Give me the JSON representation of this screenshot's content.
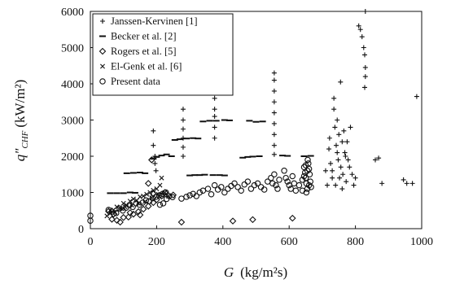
{
  "chart_data": {
    "type": "scatter",
    "title": "",
    "xlabel": {
      "symbol": "G",
      "unit": "(kg/m²s)"
    },
    "ylabel": {
      "symbol": "q\"",
      "subscript": "CHF",
      "unit": "(kW/m²)"
    },
    "xlim": [
      0,
      1000
    ],
    "ylim": [
      0,
      6000
    ],
    "xticks": [
      "0",
      "200",
      "400",
      "600",
      "800",
      "1000"
    ],
    "yticks": [
      "0",
      "1000",
      "2000",
      "3000",
      "4000",
      "5000",
      "6000"
    ],
    "grid": false,
    "legend_position": "top-left",
    "series": [
      {
        "name": "Janssen-Kervinen [1]",
        "marker": "plus",
        "points": [
          [
            190,
            2700
          ],
          [
            190,
            2300
          ],
          [
            195,
            2000
          ],
          [
            195,
            1800
          ],
          [
            198,
            1600
          ],
          [
            280,
            3300
          ],
          [
            280,
            3000
          ],
          [
            280,
            2750
          ],
          [
            280,
            2500
          ],
          [
            280,
            2250
          ],
          [
            280,
            2000
          ],
          [
            375,
            3600
          ],
          [
            375,
            3300
          ],
          [
            375,
            3100
          ],
          [
            375,
            2800
          ],
          [
            375,
            2500
          ],
          [
            555,
            4300
          ],
          [
            555,
            4100
          ],
          [
            555,
            3800
          ],
          [
            555,
            3500
          ],
          [
            555,
            3200
          ],
          [
            555,
            2900
          ],
          [
            555,
            2600
          ],
          [
            555,
            2300
          ],
          [
            555,
            2050
          ],
          [
            735,
            3600
          ],
          [
            735,
            3300
          ],
          [
            745,
            3000
          ],
          [
            750,
            2600
          ],
          [
            755,
            4050
          ],
          [
            760,
            2400
          ],
          [
            770,
            2000
          ],
          [
            720,
            2200
          ],
          [
            725,
            1800
          ],
          [
            730,
            1600
          ],
          [
            738,
            2800
          ],
          [
            742,
            2300
          ],
          [
            748,
            1900
          ],
          [
            752,
            1400
          ],
          [
            756,
            1700
          ],
          [
            762,
            1500
          ],
          [
            768,
            2100
          ],
          [
            772,
            1300
          ],
          [
            778,
            1900
          ],
          [
            782,
            1700
          ],
          [
            790,
            1500
          ],
          [
            795,
            1200
          ],
          [
            800,
            1400
          ],
          [
            760,
            1100
          ],
          [
            740,
            1200
          ],
          [
            730,
            1400
          ],
          [
            715,
            1200
          ],
          [
            710,
            1600
          ],
          [
            722,
            2500
          ],
          [
            745,
            2100
          ],
          [
            775,
            2400
          ],
          [
            785,
            2800
          ],
          [
            765,
            2700
          ],
          [
            810,
            5600
          ],
          [
            815,
            5500
          ],
          [
            820,
            5300
          ],
          [
            825,
            5000
          ],
          [
            828,
            4800
          ],
          [
            830,
            6000
          ],
          [
            830,
            4450
          ],
          [
            830,
            4200
          ],
          [
            828,
            3900
          ],
          [
            870,
            1950
          ],
          [
            860,
            1900
          ],
          [
            880,
            1250
          ],
          [
            945,
            1350
          ],
          [
            955,
            1250
          ],
          [
            972,
            1250
          ],
          [
            985,
            3650
          ]
        ]
      },
      {
        "name": "Becker et al. [2]",
        "marker": "dash",
        "points": [
          [
            60,
            980
          ],
          [
            80,
            980
          ],
          [
            100,
            980
          ],
          [
            120,
            1000
          ],
          [
            135,
            990
          ],
          [
            110,
            1530
          ],
          [
            130,
            1540
          ],
          [
            150,
            1550
          ],
          [
            165,
            1530
          ],
          [
            190,
            1930
          ],
          [
            200,
            1980
          ],
          [
            215,
            2020
          ],
          [
            230,
            2050
          ],
          [
            245,
            2000
          ],
          [
            255,
            2450
          ],
          [
            270,
            2470
          ],
          [
            290,
            2490
          ],
          [
            310,
            2500
          ],
          [
            325,
            2490
          ],
          [
            340,
            2960
          ],
          [
            360,
            2980
          ],
          [
            380,
            2980
          ],
          [
            405,
            3000
          ],
          [
            420,
            2990
          ],
          [
            480,
            2980
          ],
          [
            500,
            2950
          ],
          [
            520,
            2960
          ],
          [
            460,
            1960
          ],
          [
            475,
            1980
          ],
          [
            490,
            1990
          ],
          [
            510,
            2000
          ],
          [
            580,
            2020
          ],
          [
            595,
            2010
          ],
          [
            645,
            2000
          ],
          [
            665,
            2010
          ],
          [
            300,
            1470
          ],
          [
            315,
            1480
          ],
          [
            330,
            1480
          ],
          [
            345,
            1490
          ],
          [
            370,
            1480
          ],
          [
            390,
            1480
          ],
          [
            405,
            1470
          ]
        ]
      },
      {
        "name": "Rogers et al. [5]",
        "marker": "diamond",
        "points": [
          [
            65,
            260
          ],
          [
            80,
            230
          ],
          [
            90,
            180
          ],
          [
            100,
            310
          ],
          [
            115,
            320
          ],
          [
            130,
            400
          ],
          [
            145,
            470
          ],
          [
            160,
            540
          ],
          [
            175,
            620
          ],
          [
            190,
            720
          ],
          [
            200,
            800
          ],
          [
            215,
            900
          ],
          [
            190,
            960
          ],
          [
            175,
            1250
          ],
          [
            185,
            1900
          ],
          [
            275,
            180
          ],
          [
            430,
            210
          ],
          [
            490,
            250
          ],
          [
            610,
            290
          ],
          [
            250,
            930
          ],
          [
            225,
            1000
          ],
          [
            55,
            480
          ],
          [
            70,
            400
          ],
          [
            120,
            440
          ],
          [
            150,
            380
          ]
        ]
      },
      {
        "name": "El-Genk et al. [6]",
        "marker": "cross",
        "points": [
          [
            50,
            350
          ],
          [
            60,
            420
          ],
          [
            70,
            520
          ],
          [
            80,
            600
          ],
          [
            90,
            560
          ],
          [
            100,
            700
          ],
          [
            110,
            640
          ],
          [
            120,
            760
          ],
          [
            130,
            820
          ],
          [
            140,
            780
          ],
          [
            150,
            880
          ],
          [
            160,
            900
          ],
          [
            170,
            950
          ],
          [
            180,
            1000
          ],
          [
            190,
            1060
          ],
          [
            200,
            1100
          ],
          [
            210,
            1200
          ],
          [
            215,
            1400
          ],
          [
            225,
            1000
          ],
          [
            235,
            900
          ],
          [
            60,
            500
          ],
          [
            75,
            450
          ],
          [
            95,
            550
          ],
          [
            105,
            600
          ],
          [
            125,
            650
          ],
          [
            145,
            700
          ],
          [
            165,
            750
          ],
          [
            185,
            850
          ],
          [
            205,
            950
          ]
        ]
      },
      {
        "name": "Present data",
        "marker": "circle",
        "points": [
          [
            0,
            220
          ],
          [
            0,
            360
          ],
          [
            55,
            520
          ],
          [
            65,
            470
          ],
          [
            78,
            430
          ],
          [
            88,
            560
          ],
          [
            98,
            500
          ],
          [
            108,
            580
          ],
          [
            118,
            650
          ],
          [
            128,
            600
          ],
          [
            138,
            700
          ],
          [
            148,
            660
          ],
          [
            158,
            720
          ],
          [
            168,
            780
          ],
          [
            178,
            760
          ],
          [
            188,
            840
          ],
          [
            198,
            880
          ],
          [
            208,
            920
          ],
          [
            218,
            960
          ],
          [
            228,
            1000
          ],
          [
            238,
            900
          ],
          [
            248,
            870
          ],
          [
            230,
            820
          ],
          [
            220,
            700
          ],
          [
            210,
            660
          ],
          [
            275,
            830
          ],
          [
            290,
            880
          ],
          [
            300,
            920
          ],
          [
            310,
            960
          ],
          [
            320,
            900
          ],
          [
            330,
            1000
          ],
          [
            340,
            1050
          ],
          [
            355,
            1100
          ],
          [
            365,
            950
          ],
          [
            375,
            1200
          ],
          [
            385,
            1080
          ],
          [
            395,
            1150
          ],
          [
            405,
            1000
          ],
          [
            415,
            1100
          ],
          [
            425,
            1180
          ],
          [
            435,
            1250
          ],
          [
            445,
            1150
          ],
          [
            455,
            1050
          ],
          [
            465,
            1220
          ],
          [
            475,
            1300
          ],
          [
            485,
            1100
          ],
          [
            495,
            1200
          ],
          [
            505,
            1250
          ],
          [
            515,
            1150
          ],
          [
            525,
            1080
          ],
          [
            535,
            1300
          ],
          [
            545,
            1400
          ],
          [
            550,
            1250
          ],
          [
            555,
            1500
          ],
          [
            560,
            1200
          ],
          [
            565,
            1100
          ],
          [
            570,
            1350
          ],
          [
            585,
            1600
          ],
          [
            590,
            1400
          ],
          [
            595,
            1300
          ],
          [
            600,
            1200
          ],
          [
            605,
            1100
          ],
          [
            610,
            1450
          ],
          [
            615,
            1250
          ],
          [
            620,
            1050
          ],
          [
            630,
            1200
          ],
          [
            640,
            1350
          ],
          [
            645,
            1700
          ],
          [
            648,
            1550
          ],
          [
            650,
            1400
          ],
          [
            652,
            1250
          ],
          [
            655,
            1100
          ],
          [
            656,
            1900
          ],
          [
            658,
            1800
          ],
          [
            660,
            1650
          ],
          [
            662,
            1500
          ],
          [
            664,
            1300
          ],
          [
            666,
            1150
          ],
          [
            652,
            1000
          ],
          [
            640,
            1050
          ],
          [
            660,
            1200
          ],
          [
            645,
            1450
          ],
          [
            655,
            1600
          ],
          [
            650,
            1750
          ]
        ]
      }
    ]
  }
}
